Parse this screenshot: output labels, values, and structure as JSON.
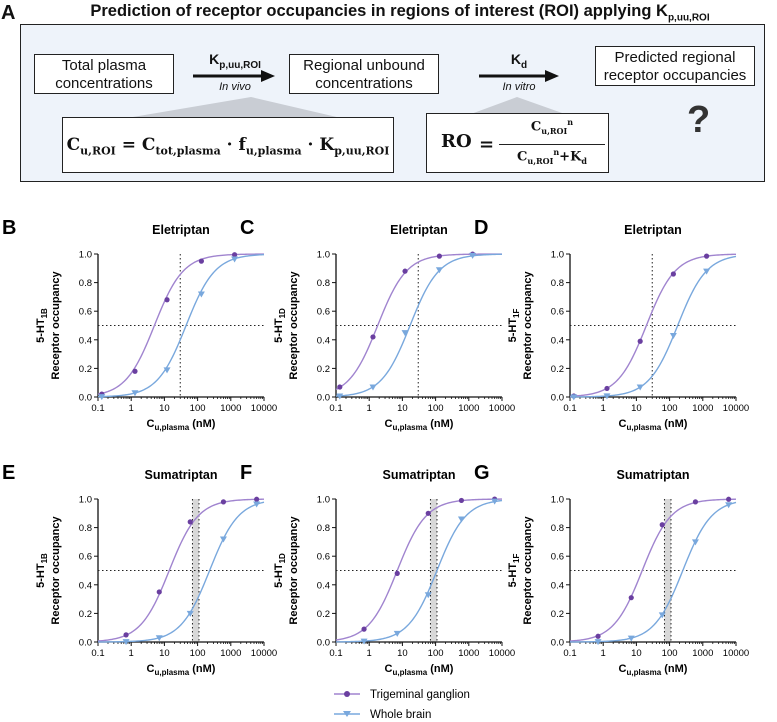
{
  "panel_a": {
    "letter": "A",
    "title": "Prediction of receptor occupancies in regions of interest (ROI) applying K",
    "title_sub": "p,uu,ROI",
    "box1": [
      "Total plasma",
      "concentrations"
    ],
    "box2": [
      "Regional unbound",
      "concentrations"
    ],
    "box3": [
      "Predicted regional",
      "receptor occupancies"
    ],
    "k1": "K",
    "k1_sub": "p,uu,ROI",
    "k1_note": "In vivo",
    "k2": "K",
    "k2_sub": "d",
    "k2_note": "In vitro",
    "eq1": {
      "lhs": "C",
      "lhs_sub": "u,ROI",
      "t1": "C",
      "t1_sub": "tot,plasma",
      "t2": "f",
      "t2_sub": "u,plasma",
      "t3": "K",
      "t3_sub": "p,uu,ROI"
    },
    "eq2": {
      "lhs": "RO",
      "num": "C",
      "num_sub": "u,ROI",
      "num_sup": "n",
      "den": "C",
      "den_sub": "u,ROI",
      "den_sup": "n",
      "den_plus": "+K",
      "den_plus_sub": "d"
    },
    "question": "?"
  },
  "legend": {
    "series": [
      {
        "name": "Trigeminal ganglion",
        "color": "#6a3fa0",
        "curve_color": "#a084cf",
        "marker": "circle"
      },
      {
        "name": "Whole brain",
        "color": "#79a8dd",
        "curve_color": "#79a8dd",
        "marker": "triangle"
      }
    ]
  },
  "chart_data": [
    {
      "letter": "B",
      "type": "line",
      "title": "Eletriptan",
      "receptor": "5-HT",
      "receptor_sub": "1B",
      "ylabel": "Receptor occupancy",
      "xlabel": "C",
      "xlabel_sub": "u,plasma",
      "xlabel_unit": " (nM)",
      "xlim": [
        0.1,
        10000
      ],
      "ylim": [
        0,
        1.0
      ],
      "xscale": "log",
      "xticks": [
        "0.1",
        "1",
        "10",
        "100",
        "1000",
        "10000"
      ],
      "yticks": [
        "0.0",
        "0.2",
        "0.4",
        "0.6",
        "0.8",
        "1.0"
      ],
      "ref_y": 0.5,
      "ref_x": [
        30
      ],
      "series": [
        {
          "name": "Trigeminal ganglion",
          "ec50": 5,
          "points": [
            [
              0.13,
              0.02
            ],
            [
              1.3,
              0.18
            ],
            [
              12,
              0.68
            ],
            [
              130,
              0.95
            ],
            [
              1300,
              0.995
            ]
          ]
        },
        {
          "name": "Whole brain",
          "ec50": 45,
          "points": [
            [
              0.13,
              0.003
            ],
            [
              1.3,
              0.03
            ],
            [
              12,
              0.19
            ],
            [
              130,
              0.72
            ],
            [
              1300,
              0.965
            ]
          ]
        }
      ]
    },
    {
      "letter": "C",
      "type": "line",
      "title": "Eletriptan",
      "receptor": "5-HT",
      "receptor_sub": "1D",
      "ylabel": "Receptor occupancy",
      "xlabel": "C",
      "xlabel_sub": "u,plasma",
      "xlabel_unit": " (nM)",
      "xlim": [
        0.1,
        10000
      ],
      "ylim": [
        0,
        1.0
      ],
      "xscale": "log",
      "xticks": [
        "0.1",
        "1",
        "10",
        "100",
        "1000",
        "10000"
      ],
      "yticks": [
        "0.0",
        "0.2",
        "0.4",
        "0.6",
        "0.8",
        "1.0"
      ],
      "ref_y": 0.5,
      "ref_x": [
        30
      ],
      "series": [
        {
          "name": "Trigeminal ganglion",
          "ec50": 1.8,
          "points": [
            [
              0.13,
              0.07
            ],
            [
              1.3,
              0.42
            ],
            [
              12,
              0.88
            ],
            [
              130,
              0.985
            ],
            [
              1300,
              0.999
            ]
          ]
        },
        {
          "name": "Whole brain",
          "ec50": 17,
          "points": [
            [
              0.13,
              0.007
            ],
            [
              1.3,
              0.07
            ],
            [
              12,
              0.45
            ],
            [
              130,
              0.89
            ],
            [
              1300,
              0.99
            ]
          ]
        }
      ]
    },
    {
      "letter": "D",
      "type": "line",
      "title": "Eletriptan",
      "receptor": "5-HT",
      "receptor_sub": "1F",
      "ylabel": "Receptor occupancy",
      "xlabel": "C",
      "xlabel_sub": "u,plasma",
      "xlabel_unit": " (nM)",
      "xlim": [
        0.1,
        10000
      ],
      "ylim": [
        0,
        1.0
      ],
      "xscale": "log",
      "xticks": [
        "0.1",
        "1",
        "10",
        "100",
        "1000",
        "10000"
      ],
      "yticks": [
        "0.0",
        "0.2",
        "0.4",
        "0.6",
        "0.8",
        "1.0"
      ],
      "ref_y": 0.5,
      "ref_x": [
        30
      ],
      "series": [
        {
          "name": "Trigeminal ganglion",
          "ec50": 20,
          "points": [
            [
              0.13,
              0.007
            ],
            [
              1.3,
              0.06
            ],
            [
              13,
              0.39
            ],
            [
              130,
              0.86
            ],
            [
              1300,
              0.985
            ]
          ]
        },
        {
          "name": "Whole brain",
          "ec50": 175,
          "points": [
            [
              0.13,
              0.001
            ],
            [
              1.3,
              0.008
            ],
            [
              13,
              0.07
            ],
            [
              130,
              0.43
            ],
            [
              1300,
              0.88
            ]
          ]
        }
      ]
    },
    {
      "letter": "E",
      "type": "line",
      "title": "Sumatriptan",
      "receptor": "5-HT",
      "receptor_sub": "1B",
      "ylabel": "Receptor occupancy",
      "xlabel": "C",
      "xlabel_sub": "u,plasma",
      "xlabel_unit": " (nM)",
      "xlim": [
        0.1,
        10000
      ],
      "ylim": [
        0,
        1.0
      ],
      "xscale": "log",
      "xticks": [
        "0.1",
        "1",
        "10",
        "100",
        "1000",
        "10000"
      ],
      "yticks": [
        "0.0",
        "0.2",
        "0.4",
        "0.6",
        "0.8",
        "1.0"
      ],
      "ref_y": 0.5,
      "ref_x": [
        70,
        110
      ],
      "ref_band": [
        70,
        110
      ],
      "series": [
        {
          "name": "Trigeminal ganglion",
          "ec50": 14,
          "points": [
            [
              0.7,
              0.05
            ],
            [
              7,
              0.35
            ],
            [
              60,
              0.84
            ],
            [
              600,
              0.98
            ],
            [
              6000,
              0.998
            ]
          ]
        },
        {
          "name": "Whole brain",
          "ec50": 230,
          "points": [
            [
              0.7,
              0.003
            ],
            [
              7,
              0.03
            ],
            [
              60,
              0.2
            ],
            [
              600,
              0.72
            ],
            [
              6000,
              0.965
            ]
          ]
        }
      ]
    },
    {
      "letter": "F",
      "type": "line",
      "title": "Sumatriptan",
      "receptor": "5-HT",
      "receptor_sub": "1D",
      "ylabel": "Receptor occupancy",
      "xlabel": "C",
      "xlabel_sub": "u,plasma",
      "xlabel_unit": " (nM)",
      "xlim": [
        0.1,
        10000
      ],
      "ylim": [
        0,
        1.0
      ],
      "xscale": "log",
      "xticks": [
        "0.1",
        "1",
        "10",
        "100",
        "1000",
        "10000"
      ],
      "yticks": [
        "0.0",
        "0.2",
        "0.4",
        "0.6",
        "0.8",
        "1.0"
      ],
      "ref_y": 0.5,
      "ref_x": [
        70,
        110
      ],
      "ref_band": [
        70,
        110
      ],
      "series": [
        {
          "name": "Trigeminal ganglion",
          "ec50": 7,
          "points": [
            [
              0.7,
              0.09
            ],
            [
              7,
              0.48
            ],
            [
              60,
              0.9
            ],
            [
              600,
              0.99
            ],
            [
              6000,
              0.999
            ]
          ]
        },
        {
          "name": "Whole brain",
          "ec50": 110,
          "points": [
            [
              0.7,
              0.006
            ],
            [
              7,
              0.06
            ],
            [
              60,
              0.33
            ],
            [
              600,
              0.86
            ],
            [
              6000,
              0.985
            ]
          ]
        }
      ]
    },
    {
      "letter": "G",
      "type": "line",
      "title": "Sumatriptan",
      "receptor": "5-HT",
      "receptor_sub": "1F",
      "ylabel": "Receptor occupancy",
      "xlabel": "C",
      "xlabel_sub": "u,plasma",
      "xlabel_unit": " (nM)",
      "xlim": [
        0.1,
        10000
      ],
      "ylim": [
        0,
        1.0
      ],
      "xscale": "log",
      "xticks": [
        "0.1",
        "1",
        "10",
        "100",
        "1000",
        "10000"
      ],
      "yticks": [
        "0.0",
        "0.2",
        "0.4",
        "0.6",
        "0.8",
        "1.0"
      ],
      "ref_y": 0.5,
      "ref_x": [
        70,
        110
      ],
      "ref_band": [
        70,
        110
      ],
      "series": [
        {
          "name": "Trigeminal ganglion",
          "ec50": 15,
          "points": [
            [
              0.7,
              0.04
            ],
            [
              7,
              0.31
            ],
            [
              60,
              0.82
            ],
            [
              600,
              0.98
            ],
            [
              6000,
              0.998
            ]
          ]
        },
        {
          "name": "Whole brain",
          "ec50": 250,
          "points": [
            [
              0.7,
              0.003
            ],
            [
              7,
              0.027
            ],
            [
              60,
              0.19
            ],
            [
              600,
              0.7
            ],
            [
              6000,
              0.96
            ]
          ]
        }
      ]
    }
  ]
}
